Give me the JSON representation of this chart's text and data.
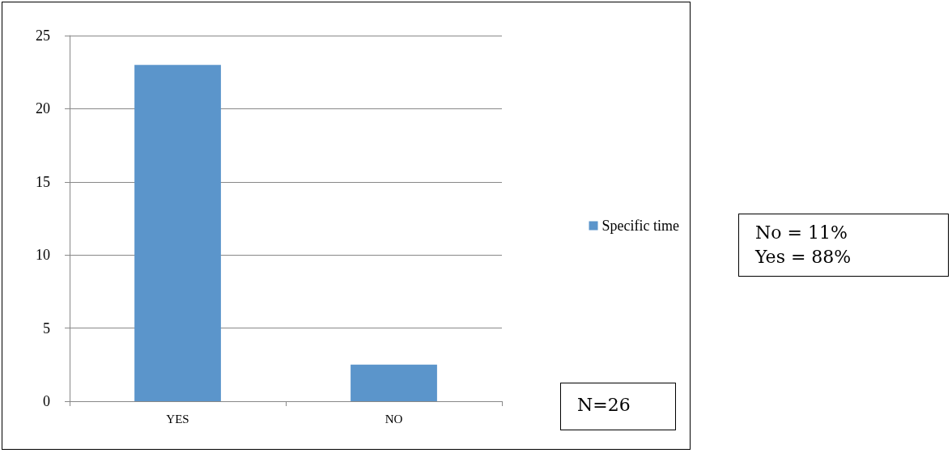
{
  "chart_data": {
    "type": "bar",
    "categories": [
      "YES",
      "NO"
    ],
    "series": [
      {
        "name": "Specific time",
        "color": "#5b95cb",
        "values": [
          23,
          2.5
        ]
      }
    ],
    "ylim": [
      0,
      25
    ],
    "yticks": [
      0,
      5,
      10,
      15,
      20,
      25
    ],
    "grid": "y",
    "legend": "right",
    "annotations": [
      "N=26",
      "No = 11%\nYes = 88%"
    ]
  }
}
